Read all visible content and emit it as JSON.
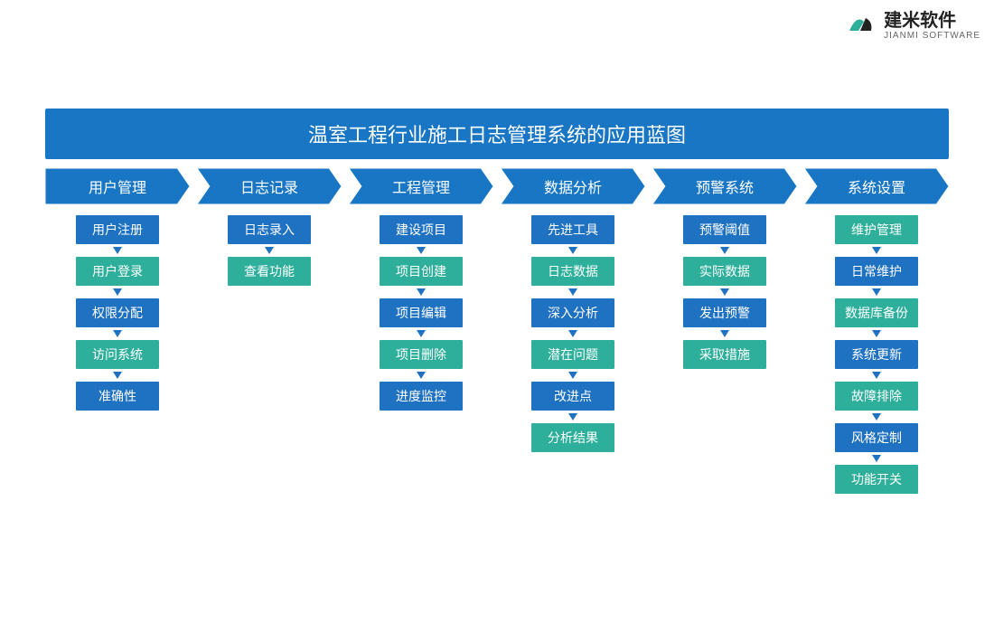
{
  "logo": {
    "cn": "建米软件",
    "en": "JIANMI SOFTWARE"
  },
  "title": "温室工程行业施工日志管理系统的应用蓝图",
  "colors": {
    "title_bg": "#1976c4",
    "header_fill": "#1976c4",
    "header_stroke": "#ffffff",
    "blue_box": "#1f71c1",
    "teal_box": "#2daf9b",
    "arrow": "#1f71c1"
  },
  "columns": [
    {
      "header": "用户管理",
      "items": [
        {
          "label": "用户注册",
          "color": "blue"
        },
        {
          "label": "用户登录",
          "color": "teal"
        },
        {
          "label": "权限分配",
          "color": "blue"
        },
        {
          "label": "访问系统",
          "color": "teal"
        },
        {
          "label": "准确性",
          "color": "blue"
        }
      ]
    },
    {
      "header": "日志记录",
      "items": [
        {
          "label": "日志录入",
          "color": "blue"
        },
        {
          "label": "查看功能",
          "color": "teal"
        }
      ]
    },
    {
      "header": "工程管理",
      "items": [
        {
          "label": "建设项目",
          "color": "blue"
        },
        {
          "label": "项目创建",
          "color": "teal"
        },
        {
          "label": "项目编辑",
          "color": "blue"
        },
        {
          "label": "项目删除",
          "color": "teal"
        },
        {
          "label": "进度监控",
          "color": "blue"
        }
      ]
    },
    {
      "header": "数据分析",
      "items": [
        {
          "label": "先进工具",
          "color": "blue"
        },
        {
          "label": "日志数据",
          "color": "teal"
        },
        {
          "label": "深入分析",
          "color": "blue"
        },
        {
          "label": "潜在问题",
          "color": "teal"
        },
        {
          "label": "改进点",
          "color": "blue"
        },
        {
          "label": "分析结果",
          "color": "teal"
        }
      ]
    },
    {
      "header": "预警系统",
      "items": [
        {
          "label": "预警阈值",
          "color": "blue"
        },
        {
          "label": "实际数据",
          "color": "teal"
        },
        {
          "label": "发出预警",
          "color": "blue"
        },
        {
          "label": "采取措施",
          "color": "teal"
        }
      ]
    },
    {
      "header": "系统设置",
      "items": [
        {
          "label": "维护管理",
          "color": "teal"
        },
        {
          "label": "日常维护",
          "color": "blue"
        },
        {
          "label": "数据库备份",
          "color": "teal"
        },
        {
          "label": "系统更新",
          "color": "blue"
        },
        {
          "label": "故障排除",
          "color": "teal"
        },
        {
          "label": "风格定制",
          "color": "blue"
        },
        {
          "label": "功能开关",
          "color": "teal"
        }
      ]
    }
  ]
}
